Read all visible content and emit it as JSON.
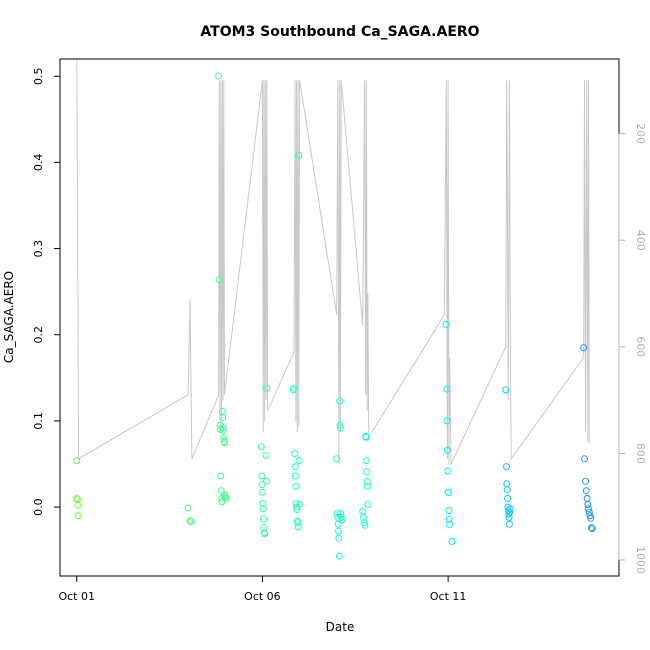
{
  "chart_data": {
    "type": "scatter",
    "title": "ATOM3 Southbound Ca_SAGA.AERO",
    "xlabel": "Date",
    "ylabel": "Ca_SAGA.AERO",
    "x_unit": "days since Oct 01",
    "xlim": [
      -0.45,
      14.6
    ],
    "ylim": [
      -0.08,
      0.52
    ],
    "x_ticks": [
      {
        "value": 0,
        "label": "Oct 01"
      },
      {
        "value": 5,
        "label": "Oct 06"
      },
      {
        "value": 10,
        "label": "Oct 11"
      }
    ],
    "y_ticks": [
      {
        "value": 0.0,
        "label": "0.0"
      },
      {
        "value": 0.1,
        "label": "0.1"
      },
      {
        "value": 0.2,
        "label": "0.2"
      },
      {
        "value": 0.3,
        "label": "0.3"
      },
      {
        "value": 0.4,
        "label": "0.4"
      },
      {
        "value": 0.5,
        "label": "0.5"
      }
    ],
    "right_axis": {
      "ticks": [
        200,
        400,
        600,
        800,
        1000
      ],
      "color": "#b3b3b3",
      "inverted": true
    },
    "point_color_scale": [
      "#66ff33",
      "#33ff99",
      "#00ffff",
      "#1e90ff"
    ],
    "points": [
      [
        0.0,
        0.054
      ],
      [
        0.0,
        0.01
      ],
      [
        0.02,
        0.009
      ],
      [
        0.03,
        0.002
      ],
      [
        0.04,
        -0.01
      ],
      [
        3.0,
        -0.001
      ],
      [
        3.05,
        -0.016
      ],
      [
        3.08,
        -0.017
      ],
      [
        3.82,
        0.5
      ],
      [
        3.84,
        0.264
      ],
      [
        3.86,
        0.095
      ],
      [
        3.87,
        0.09
      ],
      [
        3.88,
        0.036
      ],
      [
        3.89,
        0.019
      ],
      [
        3.9,
        0.01
      ],
      [
        3.91,
        0.006
      ],
      [
        3.92,
        0.111
      ],
      [
        3.93,
        0.104
      ],
      [
        3.94,
        0.092
      ],
      [
        3.95,
        0.089
      ],
      [
        3.96,
        0.08
      ],
      [
        3.97,
        0.076
      ],
      [
        3.98,
        0.075
      ],
      [
        3.99,
        0.014
      ],
      [
        4.0,
        0.012
      ],
      [
        4.02,
        0.01
      ],
      [
        4.97,
        0.07
      ],
      [
        4.98,
        0.036
      ],
      [
        4.99,
        0.026
      ],
      [
        5.0,
        0.017
      ],
      [
        5.01,
        0.004
      ],
      [
        5.02,
        -0.002
      ],
      [
        5.03,
        -0.014
      ],
      [
        5.04,
        -0.024
      ],
      [
        5.05,
        -0.03
      ],
      [
        5.06,
        -0.031
      ],
      [
        5.1,
        0.06
      ],
      [
        5.11,
        0.03
      ],
      [
        5.12,
        0.138
      ],
      [
        5.83,
        0.136
      ],
      [
        5.85,
        0.138
      ],
      [
        5.87,
        0.062
      ],
      [
        5.88,
        0.047
      ],
      [
        5.89,
        0.036
      ],
      [
        5.9,
        0.024
      ],
      [
        5.91,
        0.004
      ],
      [
        5.92,
        0.0
      ],
      [
        5.93,
        -0.003
      ],
      [
        5.94,
        -0.016
      ],
      [
        5.95,
        -0.018
      ],
      [
        5.96,
        -0.023
      ],
      [
        5.98,
        0.408
      ],
      [
        5.99,
        0.054
      ],
      [
        6.0,
        0.003
      ],
      [
        7.0,
        0.056
      ],
      [
        7.02,
        -0.007
      ],
      [
        7.03,
        -0.012
      ],
      [
        7.04,
        -0.02
      ],
      [
        7.05,
        -0.028
      ],
      [
        7.06,
        -0.036
      ],
      [
        7.07,
        -0.057
      ],
      [
        7.08,
        0.123
      ],
      [
        7.09,
        0.095
      ],
      [
        7.1,
        0.092
      ],
      [
        7.11,
        -0.008
      ],
      [
        7.12,
        -0.012
      ],
      [
        7.14,
        -0.015
      ],
      [
        7.7,
        -0.005
      ],
      [
        7.72,
        -0.012
      ],
      [
        7.74,
        -0.018
      ],
      [
        7.76,
        -0.021
      ],
      [
        7.78,
        0.082
      ],
      [
        7.79,
        0.081
      ],
      [
        7.8,
        0.054
      ],
      [
        7.81,
        0.041
      ],
      [
        7.82,
        0.03
      ],
      [
        7.83,
        0.024
      ],
      [
        7.84,
        0.003
      ],
      [
        9.95,
        0.212
      ],
      [
        9.96,
        0.137
      ],
      [
        9.97,
        0.1
      ],
      [
        9.98,
        0.066
      ],
      [
        9.99,
        0.042
      ],
      [
        10.0,
        0.017
      ],
      [
        10.01,
        0.017
      ],
      [
        10.02,
        -0.004
      ],
      [
        10.03,
        -0.014
      ],
      [
        10.04,
        -0.02
      ],
      [
        10.1,
        -0.04
      ],
      [
        11.55,
        0.136
      ],
      [
        11.57,
        0.047
      ],
      [
        11.58,
        0.027
      ],
      [
        11.59,
        0.02
      ],
      [
        11.6,
        0.01
      ],
      [
        11.61,
        0.0
      ],
      [
        11.62,
        -0.004
      ],
      [
        11.63,
        -0.008
      ],
      [
        11.64,
        -0.012
      ],
      [
        11.65,
        -0.02
      ],
      [
        11.66,
        -0.006
      ],
      [
        11.67,
        -0.002
      ],
      [
        13.65,
        0.185
      ],
      [
        13.67,
        0.056
      ],
      [
        13.7,
        0.03
      ],
      [
        13.72,
        0.019
      ],
      [
        13.74,
        0.01
      ],
      [
        13.76,
        0.003
      ],
      [
        13.78,
        -0.002
      ],
      [
        13.8,
        -0.006
      ],
      [
        13.82,
        -0.01
      ],
      [
        13.84,
        -0.013
      ],
      [
        13.86,
        -0.024
      ],
      [
        13.88,
        -0.025
      ]
    ],
    "altitude_series": {
      "name": "altitude",
      "color": "#c8c8c8",
      "points": [
        [
          0.0,
          0
        ],
        [
          0.05,
          810
        ],
        [
          3.0,
          690
        ],
        [
          3.05,
          510
        ],
        [
          3.1,
          810
        ],
        [
          3.82,
          690
        ],
        [
          3.84,
          100
        ],
        [
          3.86,
          760
        ],
        [
          3.88,
          100
        ],
        [
          3.9,
          740
        ],
        [
          3.92,
          100
        ],
        [
          3.94,
          700
        ],
        [
          3.96,
          100
        ],
        [
          3.98,
          690
        ],
        [
          5.0,
          100
        ],
        [
          5.02,
          760
        ],
        [
          5.04,
          100
        ],
        [
          5.06,
          740
        ],
        [
          5.08,
          100
        ],
        [
          5.1,
          700
        ],
        [
          5.12,
          100
        ],
        [
          5.14,
          720
        ],
        [
          5.85,
          610
        ],
        [
          5.88,
          100
        ],
        [
          5.9,
          740
        ],
        [
          5.92,
          100
        ],
        [
          5.94,
          760
        ],
        [
          5.96,
          100
        ],
        [
          5.98,
          750
        ],
        [
          6.0,
          100
        ],
        [
          7.0,
          540
        ],
        [
          7.03,
          100
        ],
        [
          7.06,
          820
        ],
        [
          7.08,
          100
        ],
        [
          7.1,
          760
        ],
        [
          7.12,
          100
        ],
        [
          7.7,
          560
        ],
        [
          7.75,
          100
        ],
        [
          7.78,
          690
        ],
        [
          7.8,
          100
        ],
        [
          7.82,
          720
        ],
        [
          7.84,
          500
        ],
        [
          7.86,
          770
        ],
        [
          9.9,
          540
        ],
        [
          9.95,
          100
        ],
        [
          9.98,
          810
        ],
        [
          10.0,
          100
        ],
        [
          10.02,
          820
        ],
        [
          10.04,
          620
        ],
        [
          10.08,
          820
        ],
        [
          11.55,
          600
        ],
        [
          11.58,
          100
        ],
        [
          11.62,
          700
        ],
        [
          11.65,
          100
        ],
        [
          11.68,
          660
        ],
        [
          11.7,
          810
        ],
        [
          13.65,
          620
        ],
        [
          13.67,
          100
        ],
        [
          13.7,
          760
        ],
        [
          13.73,
          100
        ],
        [
          13.76,
          780
        ],
        [
          13.78,
          100
        ],
        [
          13.8,
          780
        ]
      ]
    }
  }
}
